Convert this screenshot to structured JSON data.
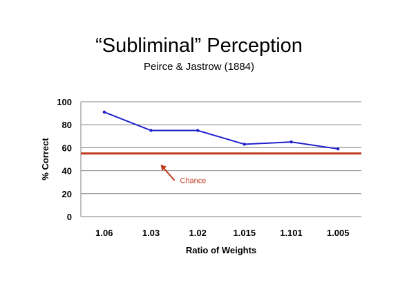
{
  "slide": {
    "title": "“Subliminal” Perception",
    "subtitle": "Peirce & Jastrow (1884)"
  },
  "chart_data": {
    "type": "line",
    "title": "“Subliminal” Perception",
    "subtitle": "Peirce & Jastrow (1884)",
    "xlabel": "Ratio of Weights",
    "ylabel": "% Correct",
    "categories": [
      "1.06",
      "1.03",
      "1.02",
      "1.015",
      "1.101",
      "1.005"
    ],
    "series": [
      {
        "values": [
          91,
          75,
          75,
          63,
          65,
          59
        ],
        "color": "#1f1fcc"
      }
    ],
    "ylim": [
      0,
      100
    ],
    "yticks": [
      0,
      20,
      40,
      60,
      80,
      100
    ],
    "grid": true,
    "reference_line": {
      "value": 55,
      "color": "#c0391b"
    },
    "annotation": {
      "text": "Chance",
      "color": "#c0391b"
    }
  }
}
